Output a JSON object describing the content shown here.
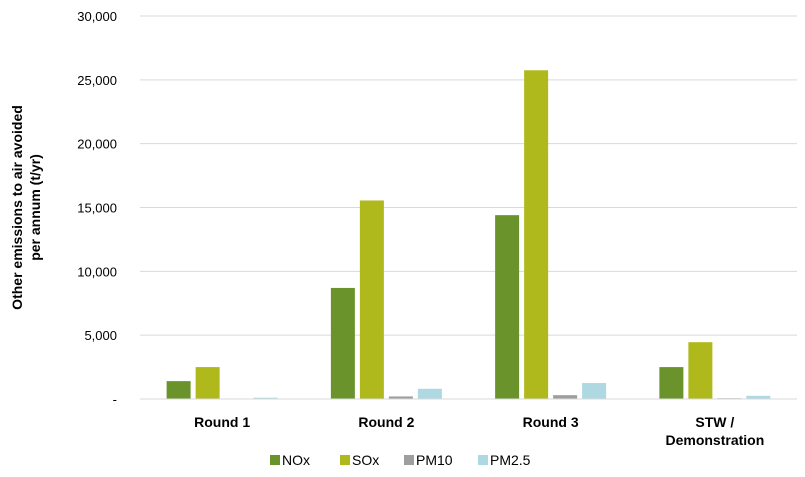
{
  "chart_data": {
    "type": "bar",
    "categories": [
      [
        "Round 1"
      ],
      [
        "Round 2"
      ],
      [
        "Round 3"
      ],
      [
        "STW /",
        "Demonstration"
      ]
    ],
    "series": [
      {
        "name": "NOx",
        "color": "#6a932b",
        "values": [
          1400,
          8700,
          14400,
          2500
        ]
      },
      {
        "name": "SOx",
        "color": "#afb91b",
        "values": [
          2500,
          15550,
          25750,
          4450
        ]
      },
      {
        "name": "PM10",
        "color": "#9e9e9e",
        "values": [
          40,
          200,
          300,
          60
        ]
      },
      {
        "name": "PM2.5",
        "color": "#aed8e2",
        "values": [
          100,
          800,
          1250,
          250
        ]
      }
    ],
    "ylabel": [
      "Other emissions to air avoided",
      "per annum (t/yr)"
    ],
    "ylim": [
      0,
      30000
    ],
    "yticks": [
      0,
      5000,
      10000,
      15000,
      20000,
      25000,
      30000
    ],
    "ytick_labels": [
      "-",
      "5,000",
      "10,000",
      "15,000",
      "20,000",
      "25,000",
      "30,000"
    ],
    "grid": true,
    "legend_position": "bottom"
  }
}
